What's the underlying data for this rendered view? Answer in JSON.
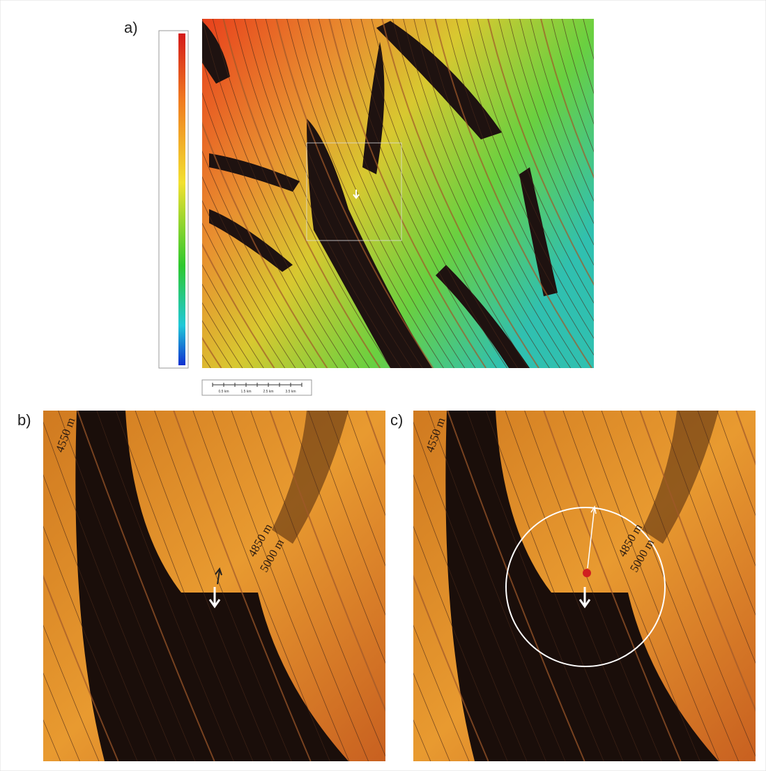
{
  "panels": {
    "a": {
      "label": "a)",
      "scale_bar": {
        "labels": [
          "0.5 km",
          "1.5 km",
          "2.5 km",
          "3.5 km"
        ]
      }
    },
    "b": {
      "label": "b)",
      "contour_labels": [
        "4550 m",
        "4850 m",
        "5000 m"
      ]
    },
    "c": {
      "label": "c)",
      "contour_labels": [
        "4550 m",
        "4850 m",
        "5000 m"
      ]
    }
  }
}
